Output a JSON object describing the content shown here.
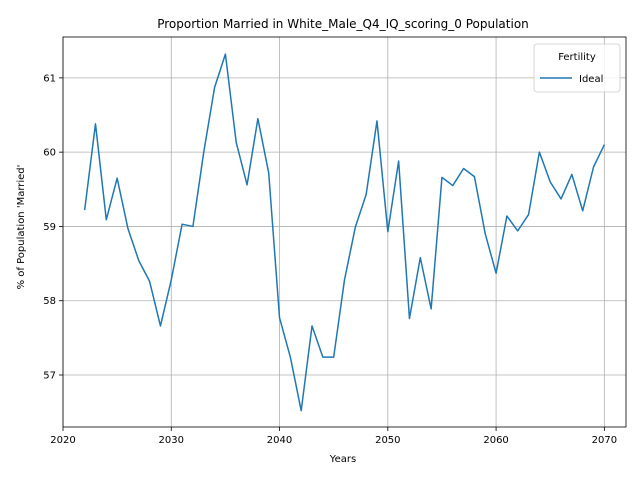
{
  "chart_data": {
    "type": "line",
    "title": "Proportion Married in White_Male_Q4_IQ_scoring_0 Population",
    "xlabel": "Years",
    "ylabel": "% of Population 'Married'",
    "xlim": [
      2020,
      2072
    ],
    "ylim": [
      56.3,
      61.55
    ],
    "xticks": [
      2020,
      2030,
      2040,
      2050,
      2060,
      2070
    ],
    "yticks": [
      57,
      58,
      59,
      60,
      61
    ],
    "grid": true,
    "legend": {
      "title": "Fertility",
      "placement": "top-right"
    },
    "series": [
      {
        "name": "Ideal",
        "color": "#1f77b4",
        "x": [
          2022,
          2023,
          2024,
          2025,
          2026,
          2027,
          2028,
          2029,
          2030,
          2031,
          2032,
          2033,
          2034,
          2035,
          2036,
          2037,
          2038,
          2039,
          2040,
          2041,
          2042,
          2043,
          2044,
          2045,
          2046,
          2047,
          2048,
          2049,
          2050,
          2051,
          2052,
          2053,
          2054,
          2055,
          2056,
          2057,
          2058,
          2059,
          2060,
          2061,
          2062,
          2063,
          2064,
          2065,
          2066,
          2067,
          2068,
          2069,
          2070
        ],
        "y": [
          59.22,
          60.38,
          59.09,
          59.65,
          58.97,
          58.54,
          58.26,
          57.66,
          58.28,
          59.03,
          59.0,
          60.0,
          60.87,
          61.32,
          60.13,
          59.56,
          60.45,
          59.72,
          57.77,
          57.24,
          56.52,
          57.66,
          57.24,
          57.24,
          58.28,
          58.99,
          59.43,
          60.42,
          58.93,
          59.88,
          57.76,
          58.58,
          57.89,
          59.66,
          59.55,
          59.78,
          59.67,
          58.9,
          58.37,
          59.14,
          58.94,
          59.16,
          60.0,
          59.6,
          59.37,
          59.7,
          59.21,
          59.8,
          60.1
        ]
      }
    ]
  }
}
